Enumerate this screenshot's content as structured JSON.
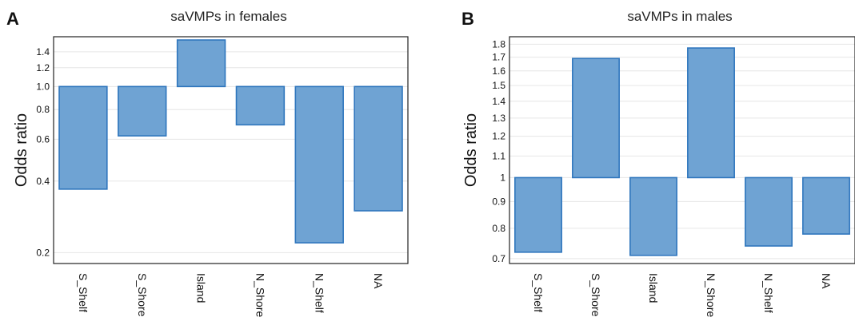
{
  "colors": {
    "bar_fill": "#6fa3d3",
    "bar_stroke": "#2f76bd"
  },
  "chart_data": [
    {
      "panel_label": "A",
      "type": "bar",
      "title": "saVMPs in females",
      "ylabel": "Odds ratio",
      "xlabel": "",
      "scale": "log",
      "baseline": 1.0,
      "ylim": [
        0.18,
        1.62
      ],
      "yticks": [
        0.2,
        0.4,
        0.6,
        0.8,
        1.0,
        1.2,
        1.4
      ],
      "ytick_labels": [
        "0.2",
        "0.4",
        "0.6",
        "0.8",
        "1.0",
        "1.2",
        "1.4"
      ],
      "grid": true,
      "categories": [
        "S_Shelf",
        "S_Shore",
        "Island",
        "N_Shore",
        "N_Shelf",
        "NA"
      ],
      "values": [
        0.37,
        0.62,
        1.57,
        0.69,
        0.22,
        0.3
      ]
    },
    {
      "panel_label": "B",
      "type": "bar",
      "title": "saVMPs in males",
      "ylabel": "Odds ratio",
      "xlabel": "",
      "scale": "log",
      "baseline": 1.0,
      "ylim": [
        0.685,
        1.86
      ],
      "yticks": [
        0.7,
        0.8,
        0.9,
        1.0,
        1.1,
        1.2,
        1.3,
        1.4,
        1.5,
        1.6,
        1.7,
        1.8
      ],
      "ytick_labels": [
        "0.7",
        "0.8",
        "0.9",
        "1",
        "1.1",
        "1.2",
        "1.3",
        "1.4",
        "1.5",
        "1.6",
        "1.7",
        "1.8"
      ],
      "grid": true,
      "categories": [
        "S_Shelf",
        "S_Shore",
        "Island",
        "N_Shore",
        "N_Shelf",
        "NA"
      ],
      "values": [
        0.72,
        1.69,
        0.71,
        1.77,
        0.74,
        0.78
      ]
    }
  ]
}
